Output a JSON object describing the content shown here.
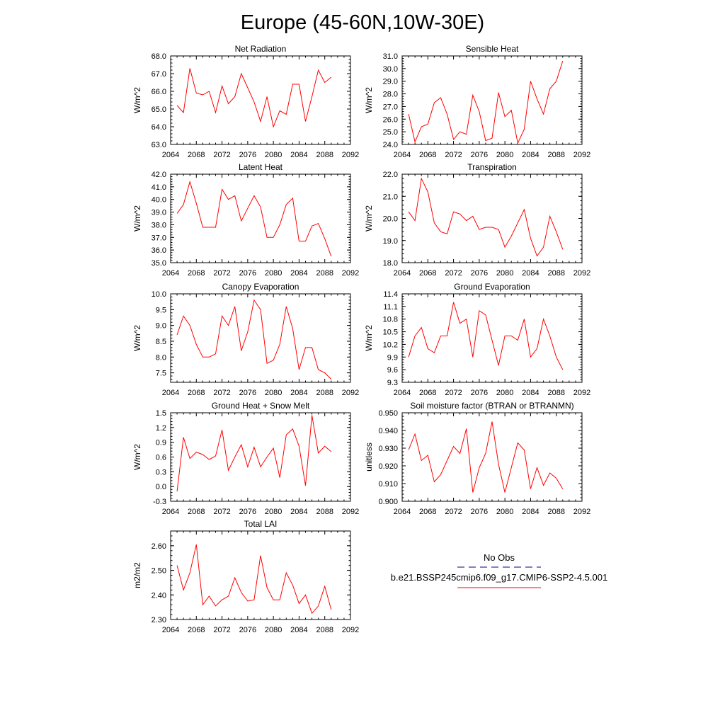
{
  "page_title": "Europe (45-60N,10W-30E)",
  "legend": {
    "obs_label": "No Obs",
    "obs_color": "#000080",
    "model_label": "b.e21.BSSP245cmip6.f09_g17.CMIP6-SSP2-4.5.001",
    "model_color": "#ff0000"
  },
  "chart_data": [
    {
      "type": "line",
      "title": "Net Radiation",
      "ylabel": "W/m^2",
      "xlim": [
        2064,
        2092
      ],
      "ylim": [
        63.0,
        68.0
      ],
      "x_ticks": [
        "2064",
        "2068",
        "2072",
        "2076",
        "2080",
        "2084",
        "2088",
        "2092"
      ],
      "y_ticks": [
        "63.0",
        "64.0",
        "65.0",
        "66.0",
        "67.0",
        "68.0"
      ],
      "x": [
        2065,
        2066,
        2067,
        2068,
        2069,
        2070,
        2071,
        2072,
        2073,
        2074,
        2075,
        2076,
        2077,
        2078,
        2079,
        2080,
        2081,
        2082,
        2083,
        2084,
        2085,
        2086,
        2087,
        2088,
        2089
      ],
      "values": [
        65.2,
        64.8,
        67.3,
        65.9,
        65.8,
        66.0,
        64.8,
        66.3,
        65.3,
        65.7,
        67.0,
        66.2,
        65.4,
        64.3,
        65.7,
        64.0,
        64.9,
        64.7,
        66.4,
        66.4,
        64.3,
        65.7,
        67.2,
        66.5,
        66.8
      ]
    },
    {
      "type": "line",
      "title": "Sensible Heat",
      "ylabel": "W/m^2",
      "xlim": [
        2064,
        2092
      ],
      "ylim": [
        24.0,
        31.0
      ],
      "x_ticks": [
        "2064",
        "2068",
        "2072",
        "2076",
        "2080",
        "2084",
        "2088",
        "2092"
      ],
      "y_ticks": [
        "24.0",
        "25.0",
        "26.0",
        "27.0",
        "28.0",
        "29.0",
        "30.0",
        "31.0"
      ],
      "x": [
        2065,
        2066,
        2067,
        2068,
        2069,
        2070,
        2071,
        2072,
        2073,
        2074,
        2075,
        2076,
        2077,
        2078,
        2079,
        2080,
        2081,
        2082,
        2083,
        2084,
        2085,
        2086,
        2087,
        2088,
        2089
      ],
      "values": [
        26.4,
        24.2,
        25.4,
        25.6,
        27.3,
        27.7,
        26.4,
        24.4,
        25.0,
        24.8,
        27.9,
        26.6,
        24.3,
        24.5,
        28.1,
        26.2,
        26.7,
        24.1,
        25.2,
        29.0,
        27.6,
        26.4,
        28.4,
        29.0,
        30.6
      ]
    },
    {
      "type": "line",
      "title": "Latent Heat",
      "ylabel": "W/m^2",
      "xlim": [
        2064,
        2092
      ],
      "ylim": [
        35.0,
        42.0
      ],
      "x_ticks": [
        "2064",
        "2068",
        "2072",
        "2076",
        "2080",
        "2084",
        "2088",
        "2092"
      ],
      "y_ticks": [
        "35.0",
        "36.0",
        "37.0",
        "38.0",
        "39.0",
        "40.0",
        "41.0",
        "42.0"
      ],
      "x": [
        2065,
        2066,
        2067,
        2068,
        2069,
        2070,
        2071,
        2072,
        2073,
        2074,
        2075,
        2076,
        2077,
        2078,
        2079,
        2080,
        2081,
        2082,
        2083,
        2084,
        2085,
        2086,
        2087,
        2088,
        2089
      ],
      "values": [
        38.9,
        39.6,
        41.4,
        39.7,
        37.8,
        37.8,
        37.8,
        40.8,
        40.0,
        40.3,
        38.3,
        39.3,
        40.3,
        39.4,
        37.0,
        37.0,
        38.0,
        39.6,
        40.1,
        36.7,
        36.7,
        37.9,
        38.1,
        36.9,
        35.5
      ]
    },
    {
      "type": "line",
      "title": "Transpiration",
      "ylabel": "W/m^2",
      "xlim": [
        2064,
        2092
      ],
      "ylim": [
        18.0,
        22.0
      ],
      "x_ticks": [
        "2064",
        "2068",
        "2072",
        "2076",
        "2080",
        "2084",
        "2088",
        "2092"
      ],
      "y_ticks": [
        "18.0",
        "19.0",
        "20.0",
        "21.0",
        "22.0"
      ],
      "x": [
        2065,
        2066,
        2067,
        2068,
        2069,
        2070,
        2071,
        2072,
        2073,
        2074,
        2075,
        2076,
        2077,
        2078,
        2079,
        2080,
        2081,
        2082,
        2083,
        2084,
        2085,
        2086,
        2087,
        2088,
        2089
      ],
      "values": [
        20.3,
        19.9,
        21.8,
        21.2,
        19.8,
        19.4,
        19.3,
        20.3,
        20.2,
        19.9,
        20.1,
        19.5,
        19.6,
        19.6,
        19.5,
        18.7,
        19.2,
        19.8,
        20.4,
        19.1,
        18.3,
        18.7,
        20.1,
        19.4,
        18.6
      ]
    },
    {
      "type": "line",
      "title": "Canopy Evaporation",
      "ylabel": "W/m^2",
      "xlim": [
        2064,
        2092
      ],
      "ylim": [
        7.2,
        10.0
      ],
      "x_ticks": [
        "2064",
        "2068",
        "2072",
        "2076",
        "2080",
        "2084",
        "2088",
        "2092"
      ],
      "y_ticks": [
        "7.5",
        "8.0",
        "8.5",
        "9.0",
        "9.5",
        "10.0"
      ],
      "x": [
        2065,
        2066,
        2067,
        2068,
        2069,
        2070,
        2071,
        2072,
        2073,
        2074,
        2075,
        2076,
        2077,
        2078,
        2079,
        2080,
        2081,
        2082,
        2083,
        2084,
        2085,
        2086,
        2087,
        2088,
        2089
      ],
      "values": [
        8.7,
        9.3,
        9.0,
        8.4,
        8.0,
        8.0,
        8.1,
        9.3,
        9.0,
        9.6,
        8.2,
        8.8,
        9.8,
        9.5,
        7.8,
        7.9,
        8.4,
        9.6,
        8.9,
        7.6,
        8.3,
        8.3,
        7.6,
        7.5,
        7.3
      ]
    },
    {
      "type": "line",
      "title": "Ground Evaporation",
      "ylabel": "W/m^2",
      "xlim": [
        2064,
        2092
      ],
      "ylim": [
        9.3,
        11.4
      ],
      "x_ticks": [
        "2064",
        "2068",
        "2072",
        "2076",
        "2080",
        "2084",
        "2088",
        "2092"
      ],
      "y_ticks": [
        "9.3",
        "9.6",
        "9.9",
        "10.2",
        "10.5",
        "10.8",
        "11.1",
        "11.4"
      ],
      "x": [
        2065,
        2066,
        2067,
        2068,
        2069,
        2070,
        2071,
        2072,
        2073,
        2074,
        2075,
        2076,
        2077,
        2078,
        2079,
        2080,
        2081,
        2082,
        2083,
        2084,
        2085,
        2086,
        2087,
        2088,
        2089
      ],
      "values": [
        9.9,
        10.4,
        10.6,
        10.1,
        10.0,
        10.4,
        10.4,
        11.2,
        10.7,
        10.8,
        9.9,
        11.0,
        10.9,
        10.3,
        9.7,
        10.4,
        10.4,
        10.3,
        10.8,
        9.9,
        10.1,
        10.8,
        10.4,
        9.9,
        9.6
      ]
    },
    {
      "type": "line",
      "title": "Ground Heat + Snow Melt",
      "ylabel": "W/m^2",
      "xlim": [
        2064,
        2092
      ],
      "ylim": [
        -0.3,
        1.5
      ],
      "x_ticks": [
        "2064",
        "2068",
        "2072",
        "2076",
        "2080",
        "2084",
        "2088",
        "2092"
      ],
      "y_ticks": [
        "-0.3",
        "0.0",
        "0.3",
        "0.6",
        "0.9",
        "1.2",
        "1.5"
      ],
      "x": [
        2065,
        2066,
        2067,
        2068,
        2069,
        2070,
        2071,
        2072,
        2073,
        2074,
        2075,
        2076,
        2077,
        2078,
        2079,
        2080,
        2081,
        2082,
        2083,
        2084,
        2085,
        2086,
        2087,
        2088,
        2089
      ],
      "values": [
        -0.1,
        1.0,
        0.57,
        0.7,
        0.65,
        0.55,
        0.62,
        1.15,
        0.33,
        0.6,
        0.85,
        0.4,
        0.8,
        0.4,
        0.6,
        0.78,
        0.18,
        1.05,
        1.17,
        0.82,
        0.02,
        1.45,
        0.68,
        0.82,
        0.71
      ]
    },
    {
      "type": "line",
      "title": "Soil moisture factor (BTRAN or BTRANMN)",
      "ylabel": "unitless",
      "xlim": [
        2064,
        2092
      ],
      "ylim": [
        0.9,
        0.95
      ],
      "x_ticks": [
        "2064",
        "2068",
        "2072",
        "2076",
        "2080",
        "2084",
        "2088",
        "2092"
      ],
      "y_ticks": [
        "0.900",
        "0.910",
        "0.920",
        "0.930",
        "0.940",
        "0.950"
      ],
      "x": [
        2065,
        2066,
        2067,
        2068,
        2069,
        2070,
        2071,
        2072,
        2073,
        2074,
        2075,
        2076,
        2077,
        2078,
        2079,
        2080,
        2081,
        2082,
        2083,
        2084,
        2085,
        2086,
        2087,
        2088,
        2089
      ],
      "values": [
        0.929,
        0.938,
        0.923,
        0.926,
        0.911,
        0.915,
        0.923,
        0.931,
        0.927,
        0.941,
        0.905,
        0.919,
        0.927,
        0.945,
        0.921,
        0.905,
        0.919,
        0.933,
        0.929,
        0.907,
        0.919,
        0.909,
        0.916,
        0.913,
        0.907
      ]
    },
    {
      "type": "line",
      "title": "Total LAI",
      "ylabel": "m2/m2",
      "xlim": [
        2064,
        2092
      ],
      "ylim": [
        2.3,
        2.66
      ],
      "x_ticks": [
        "2064",
        "2068",
        "2072",
        "2076",
        "2080",
        "2084",
        "2088",
        "2092"
      ],
      "y_ticks": [
        "2.30",
        "2.40",
        "2.50",
        "2.60"
      ],
      "x": [
        2065,
        2066,
        2067,
        2068,
        2069,
        2070,
        2071,
        2072,
        2073,
        2074,
        2075,
        2076,
        2077,
        2078,
        2079,
        2080,
        2081,
        2082,
        2083,
        2084,
        2085,
        2086,
        2087,
        2088,
        2089
      ],
      "values": [
        2.52,
        2.42,
        2.49,
        2.605,
        2.36,
        2.395,
        2.355,
        2.38,
        2.395,
        2.47,
        2.41,
        2.375,
        2.38,
        2.56,
        2.43,
        2.38,
        2.38,
        2.49,
        2.44,
        2.365,
        2.4,
        2.325,
        2.355,
        2.435,
        2.34
      ]
    }
  ]
}
